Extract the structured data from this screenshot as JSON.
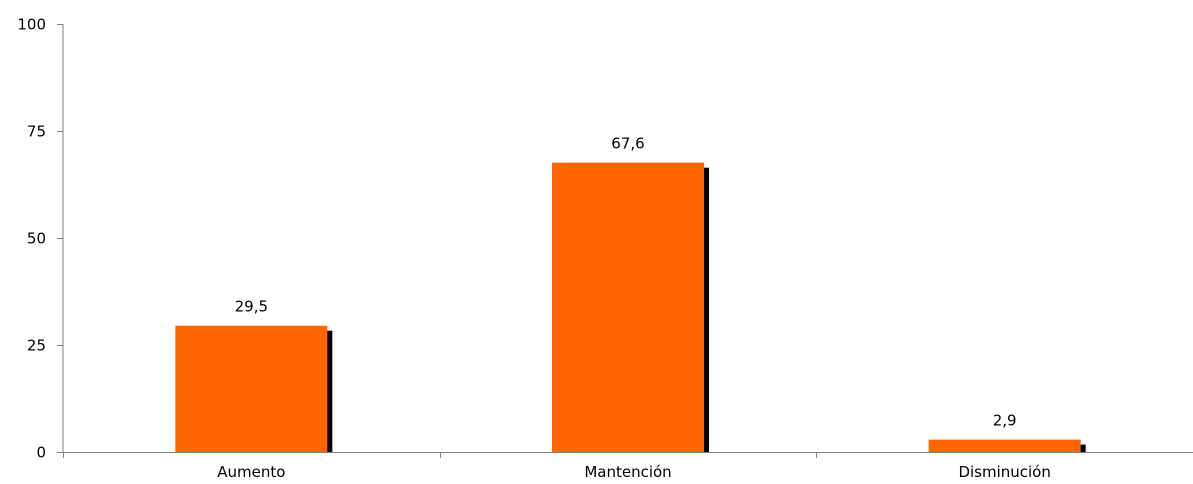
{
  "chart_data": {
    "type": "bar",
    "categories": [
      "Aumento",
      "Mantención",
      "Disminución"
    ],
    "values": [
      29.5,
      67.6,
      2.9
    ],
    "data_labels": [
      "29,5",
      "67,6",
      "2,9"
    ],
    "y_ticks": [
      0,
      25,
      50,
      75,
      100
    ],
    "y_tick_labels": [
      "0",
      "25",
      "50",
      "75",
      "100"
    ],
    "ylim": [
      0,
      100
    ],
    "title": "",
    "xlabel": "",
    "ylabel": "",
    "grid": false,
    "bar_color": "#ff6600",
    "shadow_color": "#000000",
    "axis_color": "#7f7f7f"
  }
}
